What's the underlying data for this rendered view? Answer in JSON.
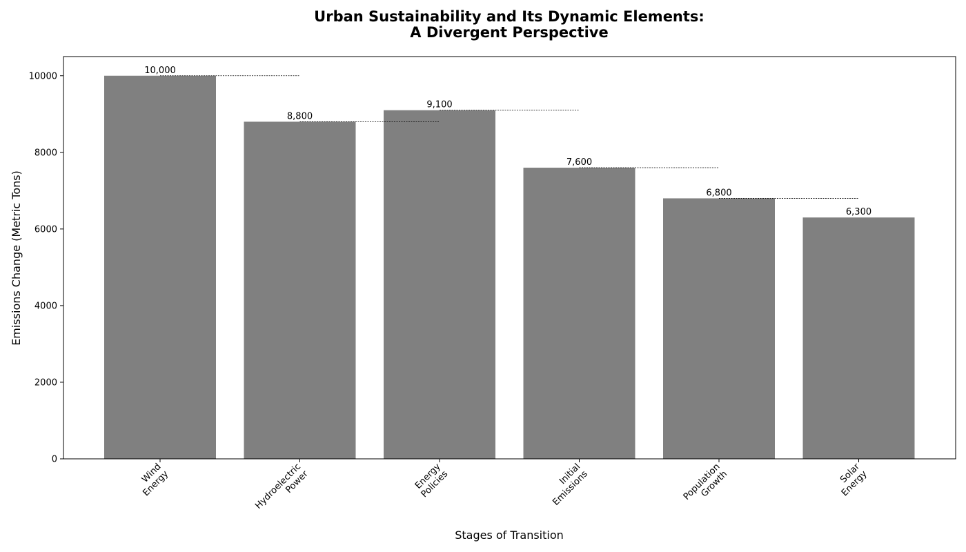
{
  "chart_data": {
    "type": "bar",
    "title_lines": [
      "Urban Sustainability and Its Dynamic Elements:",
      "A Divergent Perspective"
    ],
    "xlabel": "Stages of Transition",
    "ylabel": "Emissions Change (Metric Tons)",
    "categories": [
      [
        "Wind",
        "Energy"
      ],
      [
        "Hydroelectric",
        "Power"
      ],
      [
        "Energy",
        "Policies"
      ],
      [
        "Initial",
        "Emissions"
      ],
      [
        "Population",
        "Growth"
      ],
      [
        "Solar",
        "Energy"
      ]
    ],
    "values": [
      10000,
      8800,
      9100,
      7600,
      6800,
      6300
    ],
    "data_labels": [
      "10,000",
      "8,800",
      "9,100",
      "7,600",
      "6,800",
      "6,300"
    ],
    "yticks": [
      "0",
      "2000",
      "4000",
      "6000",
      "8000",
      "10000"
    ],
    "ylim": [
      0,
      10500
    ],
    "bar_color": "#808080",
    "connector_lines": "dotted",
    "grid": false,
    "legend": "none"
  }
}
